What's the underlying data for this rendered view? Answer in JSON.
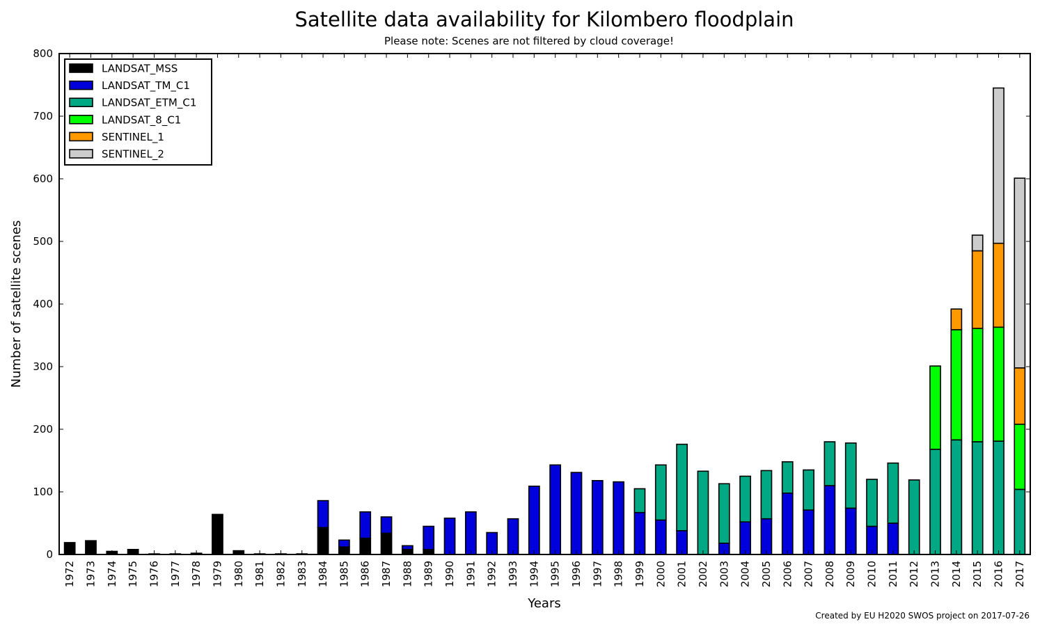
{
  "chart_data": {
    "type": "bar",
    "stacked": true,
    "title": "Satellite data availability for Kilombero floodplain",
    "subtitle": "Please note: Scenes are not filtered by cloud coverage!",
    "xlabel": "Years",
    "ylabel": "Number of satellite scenes",
    "footer": "Created by EU H2020 SWOS project on 2017-07-26",
    "ylim": [
      0,
      800
    ],
    "yticks": [
      0,
      100,
      200,
      300,
      400,
      500,
      600,
      700,
      800
    ],
    "legend_position": "top-left",
    "grid": false,
    "categories": [
      "1972",
      "1973",
      "1974",
      "1975",
      "1976",
      "1977",
      "1978",
      "1979",
      "1980",
      "1981",
      "1982",
      "1983",
      "1984",
      "1985",
      "1986",
      "1987",
      "1988",
      "1989",
      "1990",
      "1991",
      "1992",
      "1993",
      "1994",
      "1995",
      "1996",
      "1997",
      "1998",
      "1999",
      "2000",
      "2001",
      "2002",
      "2003",
      "2004",
      "2005",
      "2006",
      "2007",
      "2008",
      "2009",
      "2010",
      "2011",
      "2012",
      "2013",
      "2014",
      "2015",
      "2016",
      "2017"
    ],
    "series": [
      {
        "name": "LANDSAT_MSS",
        "color": "#000000",
        "values": [
          19,
          22,
          5,
          8,
          1,
          1,
          2,
          64,
          6,
          1,
          1,
          1,
          43,
          12,
          26,
          34,
          8,
          8,
          0,
          0,
          0,
          0,
          0,
          0,
          0,
          0,
          0,
          0,
          0,
          0,
          0,
          0,
          0,
          0,
          0,
          0,
          0,
          0,
          0,
          0,
          0,
          0,
          0,
          0,
          0,
          0
        ]
      },
      {
        "name": "LANDSAT_TM_C1",
        "color": "#0000dd",
        "values": [
          0,
          0,
          0,
          0,
          0,
          0,
          0,
          0,
          0,
          0,
          0,
          0,
          43,
          11,
          42,
          26,
          6,
          37,
          58,
          68,
          35,
          57,
          109,
          143,
          131,
          118,
          116,
          67,
          55,
          38,
          0,
          18,
          52,
          57,
          98,
          71,
          110,
          74,
          45,
          50,
          0,
          0,
          0,
          0,
          0,
          0
        ]
      },
      {
        "name": "LANDSAT_ETM_C1",
        "color": "#00a884",
        "values": [
          0,
          0,
          0,
          0,
          0,
          0,
          0,
          0,
          0,
          0,
          0,
          0,
          0,
          0,
          0,
          0,
          0,
          0,
          0,
          0,
          0,
          0,
          0,
          0,
          0,
          0,
          0,
          38,
          88,
          138,
          133,
          95,
          73,
          77,
          50,
          64,
          70,
          104,
          75,
          96,
          119,
          168,
          183,
          180,
          181,
          104
        ]
      },
      {
        "name": "LANDSAT_8_C1",
        "color": "#00ff00",
        "values": [
          0,
          0,
          0,
          0,
          0,
          0,
          0,
          0,
          0,
          0,
          0,
          0,
          0,
          0,
          0,
          0,
          0,
          0,
          0,
          0,
          0,
          0,
          0,
          0,
          0,
          0,
          0,
          0,
          0,
          0,
          0,
          0,
          0,
          0,
          0,
          0,
          0,
          0,
          0,
          0,
          0,
          133,
          176,
          181,
          182,
          104
        ]
      },
      {
        "name": "SENTINEL_1",
        "color": "#ff9900",
        "values": [
          0,
          0,
          0,
          0,
          0,
          0,
          0,
          0,
          0,
          0,
          0,
          0,
          0,
          0,
          0,
          0,
          0,
          0,
          0,
          0,
          0,
          0,
          0,
          0,
          0,
          0,
          0,
          0,
          0,
          0,
          0,
          0,
          0,
          0,
          0,
          0,
          0,
          0,
          0,
          0,
          0,
          0,
          33,
          124,
          134,
          90
        ]
      },
      {
        "name": "SENTINEL_2",
        "color": "#cccccc",
        "values": [
          0,
          0,
          0,
          0,
          0,
          0,
          0,
          0,
          0,
          0,
          0,
          0,
          0,
          0,
          0,
          0,
          0,
          0,
          0,
          0,
          0,
          0,
          0,
          0,
          0,
          0,
          0,
          0,
          0,
          0,
          0,
          0,
          0,
          0,
          0,
          0,
          0,
          0,
          0,
          0,
          0,
          0,
          0,
          25,
          248,
          303
        ]
      }
    ]
  }
}
